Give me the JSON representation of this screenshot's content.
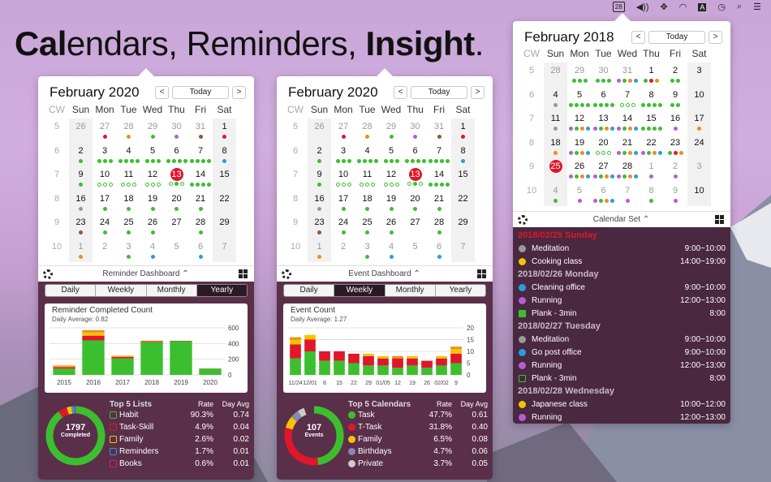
{
  "menubar": {
    "icons": [
      "calendar-28-icon",
      "volume-icon",
      "sync-icon",
      "wifi-icon",
      "text-input-icon",
      "clock-icon",
      "search-icon",
      "list-icon"
    ],
    "cal_day": "28"
  },
  "headline": {
    "bold1": "Cal",
    "plain1": "endars, Reminders, ",
    "bold2": "Insight",
    "plain2": "."
  },
  "weekdays": [
    "CW",
    "Sun",
    "Mon",
    "Tue",
    "Wed",
    "Thu",
    "Fri",
    "Sat"
  ],
  "colors": {
    "green": "#3cbf2e",
    "red": "#e0162b",
    "yellow": "#f5c400",
    "orange": "#f08c1a",
    "purple": "#b65cd6",
    "blue": "#2a9ce0",
    "gray": "#999999",
    "brown": "#8a5a3a",
    "pink": "#e0167a",
    "panel_dark": "#5a2f4a",
    "list_dark": "#4a2840"
  },
  "cal1": {
    "title": "February 2020",
    "today_label": "Today",
    "prev": "<",
    "next": ">",
    "weeks": [
      {
        "cw": "5",
        "days": [
          "26",
          "27",
          "28",
          "29",
          "30",
          "31",
          "1"
        ]
      },
      {
        "cw": "6",
        "days": [
          "2",
          "3",
          "4",
          "5",
          "6",
          "7",
          "8"
        ]
      },
      {
        "cw": "7",
        "days": [
          "9",
          "10",
          "11",
          "12",
          "13",
          "14",
          "15"
        ]
      },
      {
        "cw": "8",
        "days": [
          "16",
          "17",
          "18",
          "19",
          "20",
          "21",
          "22"
        ]
      },
      {
        "cw": "9",
        "days": [
          "23",
          "24",
          "25",
          "26",
          "27",
          "28",
          "29"
        ]
      },
      {
        "cw": "10",
        "days": [
          "1",
          "2",
          "3",
          "4",
          "5",
          "6",
          "7"
        ]
      }
    ],
    "toolbar_label": "Reminder Dashboard ⌃",
    "tabs": [
      "Daily",
      "Weekly",
      "Monthly",
      "Yearly"
    ],
    "selected_tab": 3,
    "chart_data": {
      "type": "bar",
      "title": "Reminder Completed Count",
      "subtitle": "Daily Average: 0.82",
      "categories": [
        "2015",
        "2016",
        "2017",
        "2018",
        "2019",
        "2020"
      ],
      "series": [
        {
          "name": "Habit",
          "values": [
            80,
            440,
            210,
            420,
            430,
            80
          ]
        },
        {
          "name": "Task-Skill",
          "values": [
            20,
            60,
            20,
            10,
            5,
            2
          ]
        },
        {
          "name": "Family",
          "values": [
            10,
            40,
            10,
            4,
            0,
            0
          ]
        },
        {
          "name": "Reminders",
          "values": [
            10,
            30,
            5,
            2,
            0,
            0
          ]
        }
      ],
      "ylim": [
        0,
        600
      ],
      "yticks": [
        "600",
        "400",
        "200",
        "0"
      ]
    },
    "ring": {
      "count": "1797",
      "label": "Completed"
    },
    "top": {
      "title": "Top 5 Lists",
      "rate_h": "Rate",
      "avg_h": "Day Avg",
      "rows": [
        {
          "name": "Habit",
          "rate": "90.3%",
          "avg": "0.74",
          "color": "#3cbf2e"
        },
        {
          "name": "Task-Skill",
          "rate": "4.9%",
          "avg": "0.04",
          "color": "#e0162b"
        },
        {
          "name": "Family",
          "rate": "2.6%",
          "avg": "0.02",
          "color": "#f5c400"
        },
        {
          "name": "Reminders",
          "rate": "1.7%",
          "avg": "0.01",
          "color": "#2a9ce0"
        },
        {
          "name": "Books",
          "rate": "0.6%",
          "avg": "0.01",
          "color": "#e0167a"
        }
      ]
    }
  },
  "cal2": {
    "title": "February 2020",
    "today_label": "Today",
    "prev": "<",
    "next": ">",
    "toolbar_label": "Event Dashboard ⌃",
    "tabs": [
      "Daily",
      "Weekly",
      "Monthly",
      "Yearly"
    ],
    "selected_tab": 1,
    "chart_data": {
      "type": "bar",
      "title": "Event Count",
      "subtitle": "Daily Average: 1.27",
      "categories": [
        "11/24",
        "12/01",
        "8",
        "15",
        "22",
        "29",
        "01/05",
        "12",
        "19",
        "26",
        "02/02",
        "9"
      ],
      "series": [
        {
          "name": "Task",
          "values": [
            7,
            10,
            6,
            6,
            5,
            4,
            4,
            3,
            4,
            3,
            4,
            5
          ]
        },
        {
          "name": "T-Task",
          "values": [
            6,
            5,
            4,
            4,
            4,
            4,
            3,
            4,
            3,
            3,
            3,
            4
          ]
        },
        {
          "name": "Family",
          "values": [
            2,
            2,
            0,
            0,
            0,
            1,
            1,
            0,
            1,
            0,
            1,
            2
          ]
        },
        {
          "name": "Birthdays",
          "values": [
            1,
            0,
            0,
            0,
            0,
            0,
            0,
            1,
            0,
            0,
            0,
            1
          ]
        }
      ],
      "ylim": [
        0,
        20
      ],
      "yticks": [
        "20",
        "15",
        "10",
        "5",
        "0"
      ]
    },
    "ring": {
      "count": "107",
      "label": "Events"
    },
    "top": {
      "title": "Top 5 Calendars",
      "rate_h": "Rate",
      "avg_h": "Day Avg",
      "rows": [
        {
          "name": "Task",
          "rate": "47.7%",
          "avg": "0.61",
          "color": "#3cbf2e"
        },
        {
          "name": "T-Task",
          "rate": "31.8%",
          "avg": "0.40",
          "color": "#e0162b"
        },
        {
          "name": "Family",
          "rate": "6.5%",
          "avg": "0.08",
          "color": "#f5c400"
        },
        {
          "name": "Birthdays",
          "rate": "4.7%",
          "avg": "0.06",
          "color": "#8888aa"
        },
        {
          "name": "Private",
          "rate": "3.7%",
          "avg": "0.05",
          "color": "#cccccc"
        }
      ]
    }
  },
  "cal3": {
    "title": "February 2018",
    "today_label": "Today",
    "prev": "<",
    "next": ">",
    "weeks": [
      {
        "cw": "5",
        "days": [
          "28",
          "29",
          "30",
          "31",
          "1",
          "2",
          "3"
        ]
      },
      {
        "cw": "6",
        "days": [
          "4",
          "5",
          "6",
          "7",
          "8",
          "9",
          "10"
        ]
      },
      {
        "cw": "7",
        "days": [
          "11",
          "12",
          "13",
          "14",
          "15",
          "16",
          "17"
        ]
      },
      {
        "cw": "8",
        "days": [
          "18",
          "19",
          "20",
          "21",
          "22",
          "23",
          "24"
        ]
      },
      {
        "cw": "9",
        "days": [
          "25",
          "26",
          "27",
          "28",
          "1",
          "2",
          "3"
        ]
      },
      {
        "cw": "10",
        "days": [
          "4",
          "5",
          "6",
          "7",
          "8",
          "9",
          "10"
        ]
      }
    ],
    "toolbar_label": "Calendar Set ⌃",
    "events": [
      {
        "date": "2018/02/25 Sunday",
        "red": true,
        "items": [
          {
            "name": "Meditation",
            "time": "9:00~10:00",
            "color": "#9a9a9a",
            "shape": "dot"
          },
          {
            "name": "Cooking class",
            "time": "14:00~19:00",
            "color": "#f5c400",
            "shape": "dot"
          }
        ]
      },
      {
        "date": "2018/02/26 Monday",
        "red": false,
        "items": [
          {
            "name": "Cleaning office",
            "time": "9:00~10:00",
            "color": "#2a9ce0",
            "shape": "dot"
          },
          {
            "name": "Running",
            "time": "12:00~13:00",
            "color": "#b65cd6",
            "shape": "dot"
          },
          {
            "name": "Plank - 3min",
            "time": "8:00",
            "color": "#3cbf2e",
            "shape": "sq"
          }
        ]
      },
      {
        "date": "2018/02/27 Tuesday",
        "red": false,
        "items": [
          {
            "name": "Meditation",
            "time": "9:00~10:00",
            "color": "#9a9a9a",
            "shape": "dot"
          },
          {
            "name": "Go post office",
            "time": "9:00~10:00",
            "color": "#2a9ce0",
            "shape": "dot"
          },
          {
            "name": "Running",
            "time": "12:00~13:00",
            "color": "#b65cd6",
            "shape": "dot"
          },
          {
            "name": "Plank - 3min",
            "time": "8:00",
            "color": "#3cbf2e",
            "shape": "sqo"
          }
        ]
      },
      {
        "date": "2018/02/28 Wednesday",
        "red": false,
        "items": [
          {
            "name": "Japanese class",
            "time": "10:00~12:00",
            "color": "#f5c400",
            "shape": "dot"
          },
          {
            "name": "Running",
            "time": "12:00~13:00",
            "color": "#b65cd6",
            "shape": "dot"
          }
        ]
      }
    ]
  }
}
